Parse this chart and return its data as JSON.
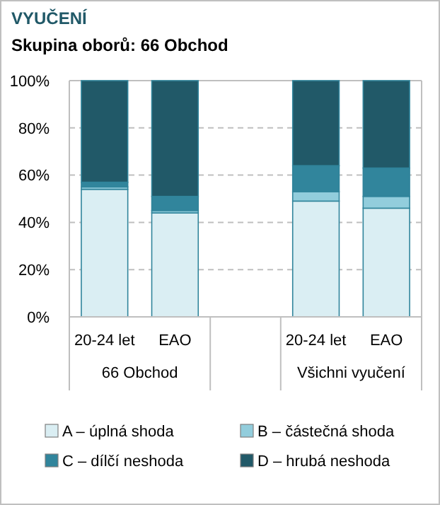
{
  "chart_data": {
    "type": "bar",
    "title": "VYUČENÍ",
    "subtitle": "Skupina oborů: 66 Obchod",
    "stacked": true,
    "categories": [
      "20-24 let",
      "EAO",
      null,
      "20-24 let",
      "EAO"
    ],
    "series": [
      {
        "name": "A – úplná shoda",
        "color": "#daeef3",
        "values": [
          54,
          44,
          null,
          49,
          46
        ]
      },
      {
        "name": "B – částečná shoda",
        "color": "#92cddc",
        "values": [
          1,
          1,
          null,
          4,
          5
        ]
      },
      {
        "name": "C – dílčí neshoda",
        "color": "#31859c",
        "values": [
          2,
          6,
          null,
          11,
          12
        ]
      },
      {
        "name": "D – hrubá neshoda",
        "color": "#215968",
        "values": [
          43,
          49,
          null,
          36,
          37
        ]
      }
    ],
    "annotations": [
      "66 Obchod",
      "Všichni vyučení"
    ],
    "ylim": [
      0,
      100
    ],
    "yticks": [
      {
        "value": 0,
        "label": "0%"
      },
      {
        "value": 20,
        "label": "20%"
      },
      {
        "value": 40,
        "label": "40%"
      },
      {
        "value": 60,
        "label": "60%"
      },
      {
        "value": 80,
        "label": "80%"
      },
      {
        "value": 100,
        "label": "100%"
      }
    ],
    "grid": "y",
    "legend": "bottom"
  }
}
